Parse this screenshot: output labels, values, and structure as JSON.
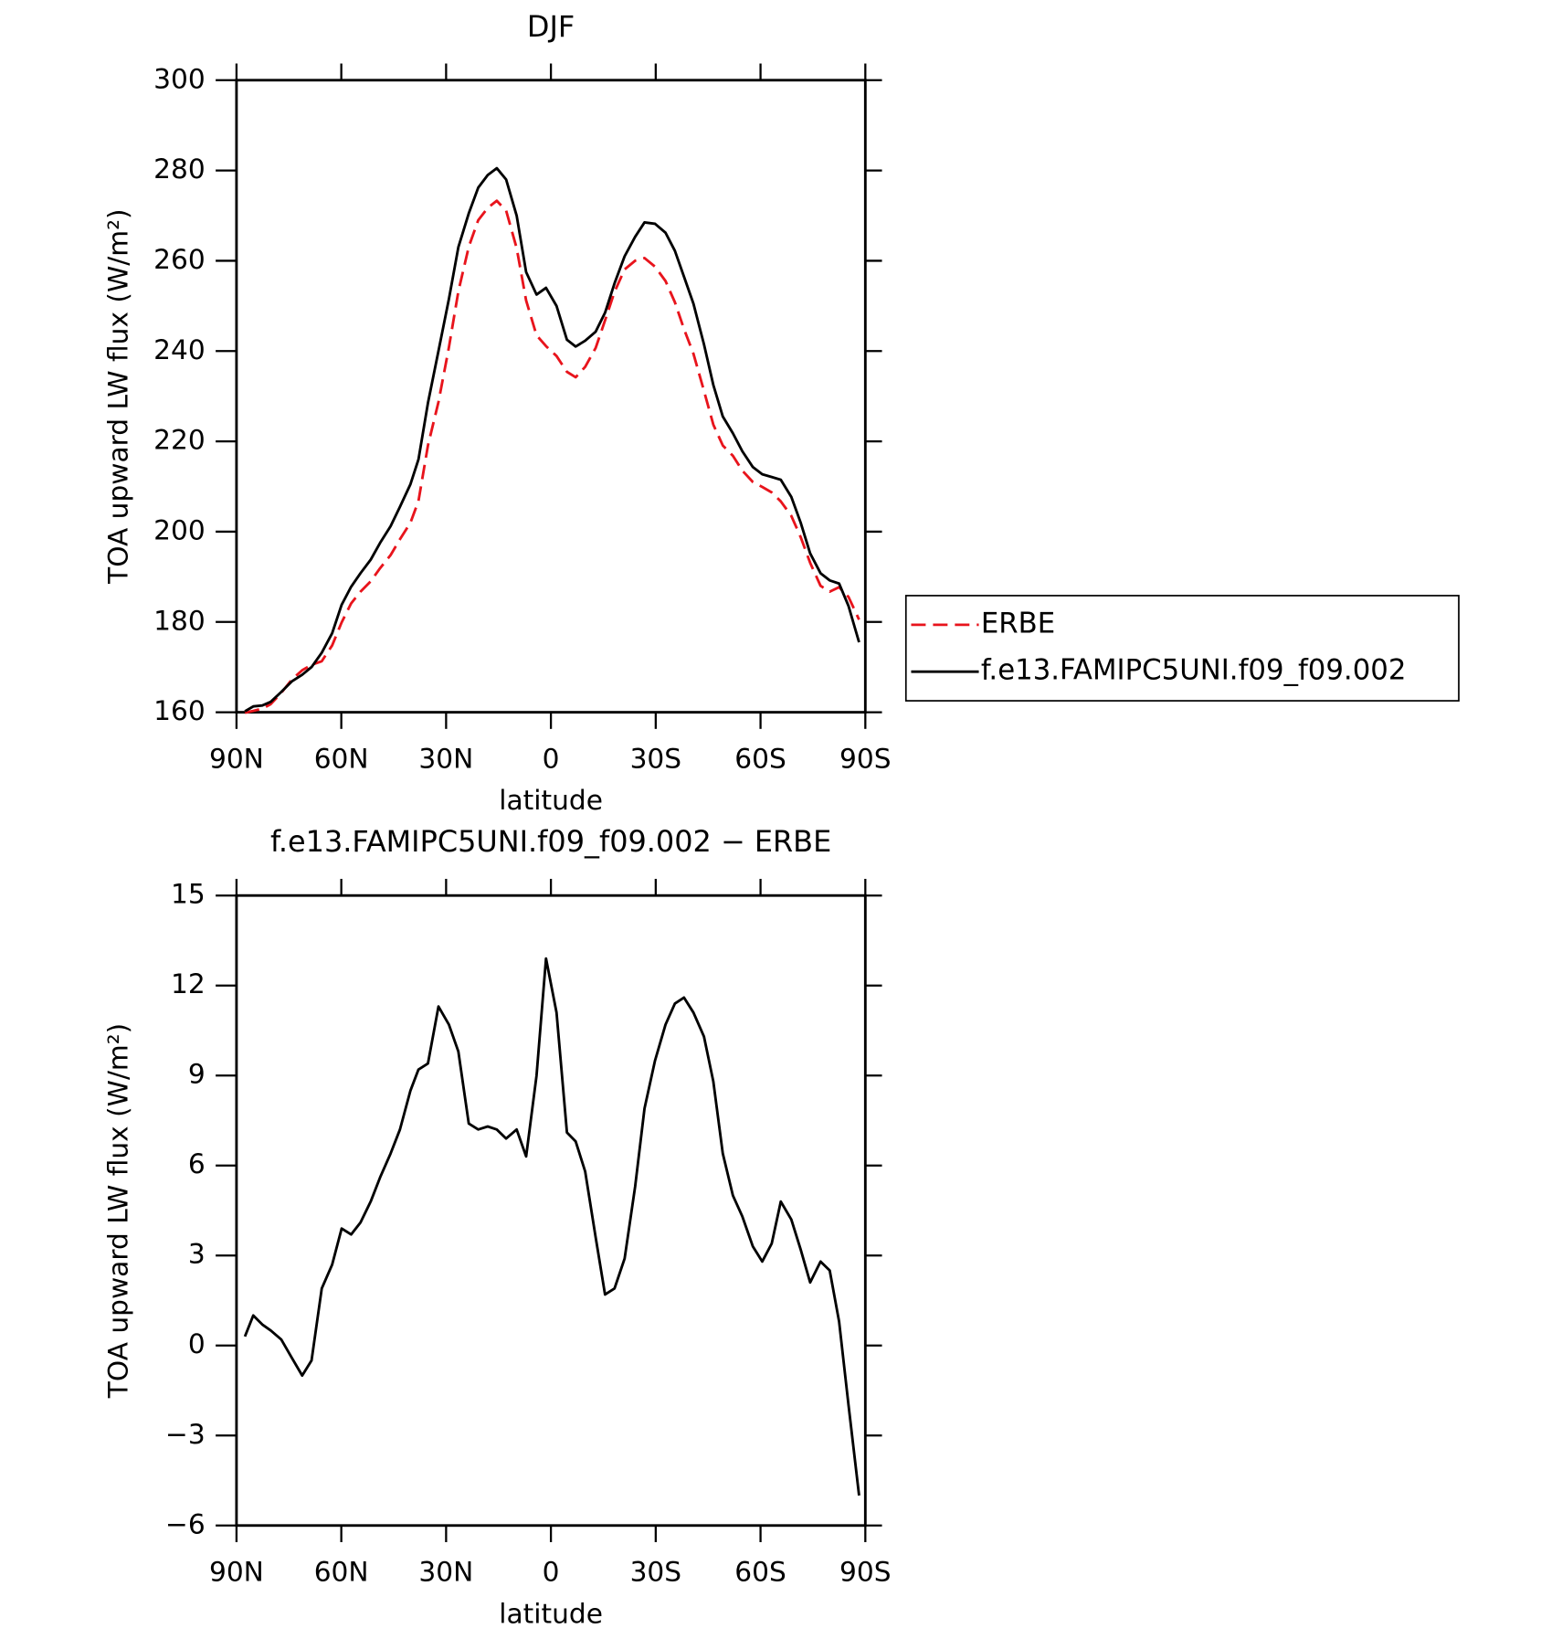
{
  "chart_data": [
    {
      "type": "line",
      "title": "DJF",
      "xlabel": "latitude",
      "ylabel": "TOA upward LW flux (W/m²)",
      "x": [
        87.6,
        85.2,
        82.6,
        80.2,
        77.2,
        74.2,
        71.2,
        68.5,
        65.6,
        62.6,
        59.9,
        57.2,
        54.5,
        51.6,
        48.9,
        45.9,
        43.2,
        40.2,
        37.9,
        35.2,
        32.2,
        29.2,
        26.5,
        23.5,
        20.8,
        18.1,
        15.5,
        12.8,
        9.8,
        7.1,
        4.1,
        1.4,
        -1.6,
        -4.6,
        -7.1,
        -9.8,
        -12.8,
        -15.5,
        -18.2,
        -21.1,
        -24.1,
        -26.8,
        -29.8,
        -32.8,
        -35.5,
        -38.1,
        -40.8,
        -43.8,
        -46.5,
        -49.2,
        -52.1,
        -54.8,
        -57.8,
        -60.5,
        -63.2,
        -65.8,
        -68.8,
        -71.5,
        -74.2,
        -77.2,
        -79.8,
        -82.5,
        -85.2,
        -88.2
      ],
      "series": [
        {
          "name": "ERBE",
          "color": "#e8141c",
          "linestyle": "dashed",
          "values": [
            159.9,
            160.3,
            160.8,
            161.8,
            164.3,
            167.2,
            169.3,
            170.5,
            171.3,
            174.8,
            179.9,
            184.1,
            186.7,
            189,
            191.9,
            194.8,
            198.3,
            202,
            206.8,
            219.1,
            228.7,
            240.8,
            253.2,
            263.1,
            269,
            271.7,
            273.3,
            271.1,
            262.8,
            251.2,
            243.5,
            241.1,
            238.9,
            235.4,
            234.2,
            236.5,
            240.7,
            246.8,
            253.1,
            258.1,
            260,
            260.6,
            258.7,
            255.5,
            250.8,
            244.9,
            239.4,
            231.2,
            223.7,
            219.1,
            216.8,
            213.5,
            211,
            209.9,
            208.7,
            206.7,
            203.5,
            198.8,
            193.1,
            188,
            186.7,
            187.7,
            185.5,
            180.5
          ]
        },
        {
          "name": "f.e13.FAMIPC5UNI.f09_f09.002",
          "color": "#000000",
          "linestyle": "solid",
          "values": [
            160.2,
            161.3,
            161.5,
            162.3,
            164.5,
            166.8,
            168.3,
            170,
            173.2,
            177.5,
            183.8,
            187.8,
            190.8,
            193.8,
            197.5,
            201.2,
            205.5,
            210.5,
            216,
            228.5,
            240,
            251.5,
            263,
            270.5,
            276.2,
            279,
            280.5,
            278,
            270,
            257.5,
            252.5,
            254,
            250,
            242.5,
            241,
            242.3,
            244.3,
            248.5,
            255,
            261,
            265.3,
            268.5,
            268.2,
            266.2,
            262.2,
            256.5,
            250.5,
            241.5,
            232.5,
            225.5,
            221.8,
            217.8,
            214.3,
            212.7,
            212.1,
            211.5,
            207.7,
            202,
            195.2,
            190.8,
            189.2,
            188.5,
            183.5,
            175.5
          ]
        }
      ],
      "xlim": [
        90,
        -90
      ],
      "xticks": [
        {
          "value": 90,
          "label": "90N"
        },
        {
          "value": 60,
          "label": "60N"
        },
        {
          "value": 30,
          "label": "30N"
        },
        0,
        {
          "value": -30,
          "label": "30S"
        },
        {
          "value": -60,
          "label": "60S"
        },
        {
          "value": -90,
          "label": "90S"
        }
      ],
      "ylim": [
        160,
        300
      ],
      "yticks": [
        160,
        180,
        200,
        220,
        240,
        260,
        280,
        300
      ],
      "legend": "right"
    },
    {
      "type": "line",
      "title": "f.e13.FAMIPC5UNI.f09_f09.002 − ERBE",
      "xlabel": "latitude",
      "ylabel": "TOA upward LW flux (W/m²)",
      "x": [
        87.6,
        85.2,
        82.6,
        80.2,
        77.2,
        74.2,
        71.2,
        68.5,
        65.6,
        62.6,
        59.9,
        57.2,
        54.5,
        51.6,
        48.9,
        45.9,
        43.2,
        40.2,
        37.9,
        35.2,
        32.2,
        29.2,
        26.5,
        23.5,
        20.8,
        18.1,
        15.5,
        12.8,
        9.8,
        7.1,
        4.1,
        1.4,
        -1.6,
        -4.6,
        -7.1,
        -9.8,
        -12.8,
        -15.5,
        -18.2,
        -21.1,
        -24.1,
        -26.8,
        -29.8,
        -32.8,
        -35.5,
        -38.1,
        -40.8,
        -43.8,
        -46.5,
        -49.2,
        -52.1,
        -54.8,
        -57.8,
        -60.5,
        -63.2,
        -65.8,
        -68.8,
        -71.5,
        -74.2,
        -77.2,
        -79.8,
        -82.5,
        -85.2,
        -88.2
      ],
      "values": [
        0.3,
        1.0,
        0.7,
        0.5,
        0.2,
        -0.4,
        -1.0,
        -0.5,
        1.9,
        2.7,
        3.9,
        3.7,
        4.1,
        4.8,
        5.6,
        6.4,
        7.2,
        8.5,
        9.2,
        9.4,
        11.3,
        10.7,
        9.8,
        7.4,
        7.2,
        7.3,
        7.2,
        6.9,
        7.2,
        6.3,
        9.0,
        12.9,
        11.1,
        7.1,
        6.8,
        5.8,
        3.6,
        1.7,
        1.9,
        2.9,
        5.3,
        7.9,
        9.5,
        10.7,
        11.4,
        11.6,
        11.1,
        10.3,
        8.8,
        6.4,
        5.0,
        4.3,
        3.3,
        2.8,
        3.4,
        4.8,
        4.2,
        3.2,
        2.1,
        2.8,
        2.5,
        0.8,
        -2.0,
        -5.0
      ],
      "color": "#000000",
      "xlim": [
        90,
        -90
      ],
      "xticks": [
        {
          "value": 90,
          "label": "90N"
        },
        {
          "value": 60,
          "label": "60N"
        },
        {
          "value": 30,
          "label": "30N"
        },
        0,
        {
          "value": -30,
          "label": "30S"
        },
        {
          "value": -60,
          "label": "60S"
        },
        {
          "value": -90,
          "label": "90S"
        }
      ],
      "ylim": [
        -6,
        15
      ],
      "yticks": [
        {
          "value": -6,
          "label": "−6"
        },
        {
          "value": -3,
          "label": "−3"
        },
        0,
        3,
        6,
        9,
        12,
        15
      ]
    }
  ]
}
